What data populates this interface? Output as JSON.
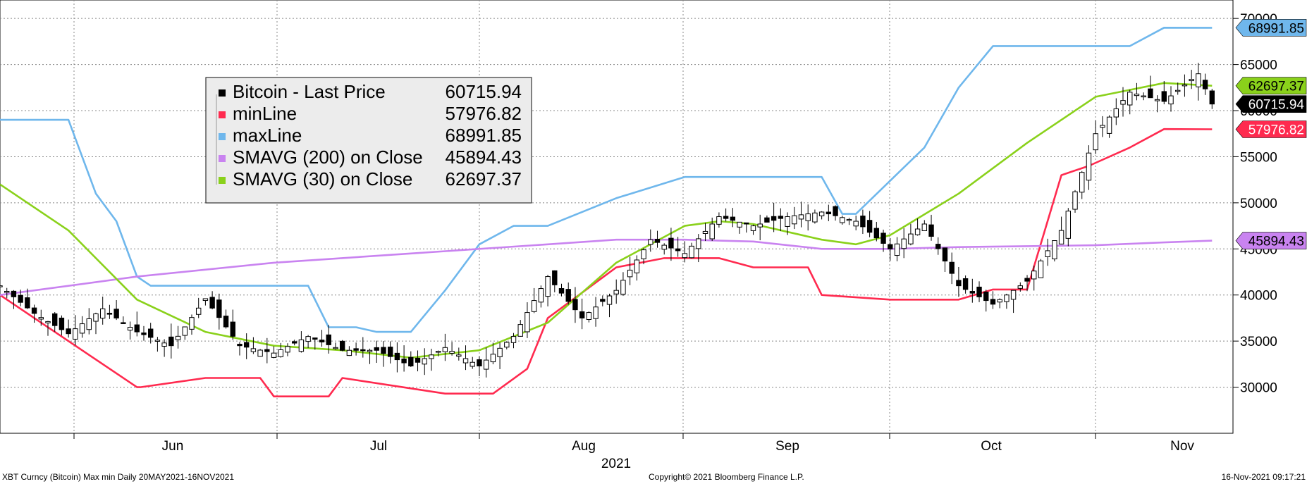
{
  "chart_data": {
    "type": "line",
    "x_tick_labels": [
      "Jun",
      "Jul",
      "Aug",
      "Sep",
      "Oct",
      "Nov"
    ],
    "year_label": "2021",
    "y_ticks": [
      30000,
      35000,
      40000,
      45000,
      50000,
      55000,
      60000,
      65000,
      70000
    ],
    "ylim": [
      25000,
      72000
    ],
    "grid": true,
    "legend": {
      "placement": "top-left",
      "entries": [
        {
          "name": "Bitcoin - Last Price",
          "value": "60715.94",
          "color": "#000000"
        },
        {
          "name": "minLine",
          "value": "57976.82",
          "color": "#ff2a4f"
        },
        {
          "name": "maxLine",
          "value": "68991.85",
          "color": "#6fb7ec"
        },
        {
          "name": "SMAVG (200)  on Close",
          "value": "45894.43",
          "color": "#c983f0"
        },
        {
          "name": "SMAVG (30)  on Close",
          "value": "62697.37",
          "color": "#8ad11b"
        }
      ]
    },
    "last_value_labels": [
      {
        "value": "68991.85",
        "series": "maxLine"
      },
      {
        "value": "62697.37",
        "series": "SMAVG (30)  on Close"
      },
      {
        "value": "60715.94",
        "series": "Bitcoin - Last Price"
      },
      {
        "value": "57976.82",
        "series": "minLine"
      },
      {
        "value": "45894.43",
        "series": "SMAVG (200)  on Close"
      }
    ],
    "series": [
      {
        "name": "Bitcoin - Last Price",
        "kind": "candlestick",
        "color": "#000000",
        "x": [
          0,
          5,
          10,
          15,
          20,
          25,
          30,
          35,
          40,
          45,
          50,
          55,
          60,
          65,
          70,
          75,
          80,
          85,
          90,
          95,
          100,
          105,
          110,
          115,
          120,
          125,
          130,
          135,
          140,
          145,
          150,
          155,
          160,
          165,
          170,
          175,
          177
        ],
        "y": [
          41000,
          38000,
          35800,
          38500,
          36000,
          34500,
          39600,
          34500,
          33700,
          35500,
          34000,
          34000,
          32300,
          34300,
          32300,
          35500,
          42000,
          37500,
          40500,
          46000,
          44500,
          48500,
          47500,
          48500,
          49000,
          48000,
          45000,
          47700,
          41000,
          39000,
          41500,
          47000,
          57500,
          62000,
          61000,
          64000,
          60715.94
        ]
      },
      {
        "name": "minLine",
        "color": "#ff2a4f",
        "x": [
          0,
          20,
          20.5,
          30,
          38,
          40,
          48,
          50,
          65,
          70,
          72,
          77,
          80,
          90,
          97,
          105,
          110,
          118,
          120,
          130,
          137,
          140,
          145,
          150,
          155,
          159,
          165,
          170,
          177
        ],
        "y": [
          40000,
          30000,
          30000,
          31000,
          31000,
          29000,
          29000,
          31000,
          29300,
          29300,
          29300,
          32000,
          37500,
          43000,
          44000,
          44000,
          43000,
          43000,
          40000,
          39500,
          39500,
          39500,
          40600,
          40600,
          53000,
          54000,
          56000,
          58000,
          57976.82
        ]
      },
      {
        "name": "maxLine",
        "color": "#6fb7ec",
        "x": [
          0,
          10,
          14,
          17,
          20,
          22,
          45,
          48,
          52,
          55,
          60,
          65,
          70,
          75,
          80,
          90,
          100,
          105,
          120,
          123,
          125,
          135,
          140,
          145,
          150,
          155,
          160,
          165,
          170,
          177
        ],
        "y": [
          59000,
          59000,
          51000,
          48000,
          42000,
          41000,
          41000,
          36500,
          36500,
          36000,
          36000,
          40500,
          45500,
          47500,
          47500,
          50500,
          52800,
          52800,
          52800,
          48800,
          48800,
          56000,
          62500,
          67000,
          67000,
          67000,
          67000,
          67000,
          69000,
          68991.85
        ]
      },
      {
        "name": "SMAVG (200)  on Close",
        "color": "#c983f0",
        "x": [
          0,
          20,
          40,
          60,
          80,
          90,
          100,
          110,
          120,
          130,
          140,
          150,
          160,
          170,
          177
        ],
        "y": [
          40000,
          42000,
          43500,
          44500,
          45500,
          46000,
          46000,
          45800,
          45000,
          45000,
          45200,
          45300,
          45400,
          45700,
          45894.43
        ]
      },
      {
        "name": "SMAVG (30)  on Close",
        "color": "#8ad11b",
        "x": [
          0,
          10,
          20,
          30,
          40,
          50,
          60,
          70,
          80,
          90,
          100,
          105,
          110,
          120,
          125,
          130,
          140,
          150,
          160,
          170,
          177
        ],
        "y": [
          52000,
          47000,
          39500,
          36000,
          34500,
          34000,
          33200,
          34000,
          37000,
          43500,
          47500,
          48000,
          47700,
          46000,
          45500,
          46500,
          51000,
          56500,
          61500,
          63000,
          62697.37
        ]
      }
    ]
  },
  "footer": {
    "left": "XBT Curncy (Bitcoin) Max min  Daily 20MAY2021-16NOV2021",
    "center": "Copyright© 2021 Bloomberg Finance L.P.",
    "right": "16-Nov-2021 09:17:21"
  }
}
